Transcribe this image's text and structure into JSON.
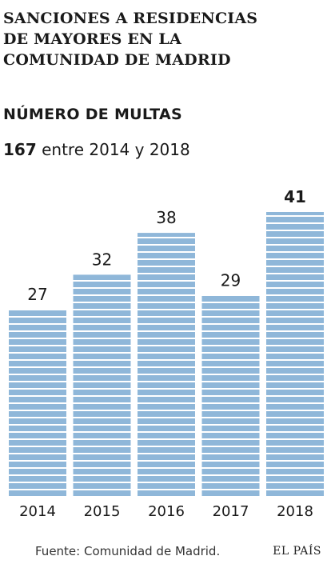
{
  "header": {
    "title": "SANCIONES A RESIDENCIAS\nDE MAYORES EN LA\nCOMUNIDAD DE MADRID",
    "subtitle": "NÚMERO DE MULTAS",
    "total_value": "167",
    "total_text": " entre 2014 y 2018"
  },
  "footer": {
    "source": "Fuente: Comunidad de Madrid.",
    "brand": "EL PAÍS"
  },
  "colors": {
    "bar": "#8fb7d9",
    "stripe": "#ffffff",
    "text": "#1a1a1a"
  },
  "chart_data": {
    "type": "bar",
    "title": "NÚMERO DE MULTAS",
    "categories": [
      "2014",
      "2015",
      "2016",
      "2017",
      "2018"
    ],
    "values": [
      27,
      32,
      38,
      29,
      41
    ],
    "highlight": "2018",
    "ylim": [
      0,
      41
    ],
    "grid": false,
    "xlabel": "",
    "ylabel": ""
  }
}
